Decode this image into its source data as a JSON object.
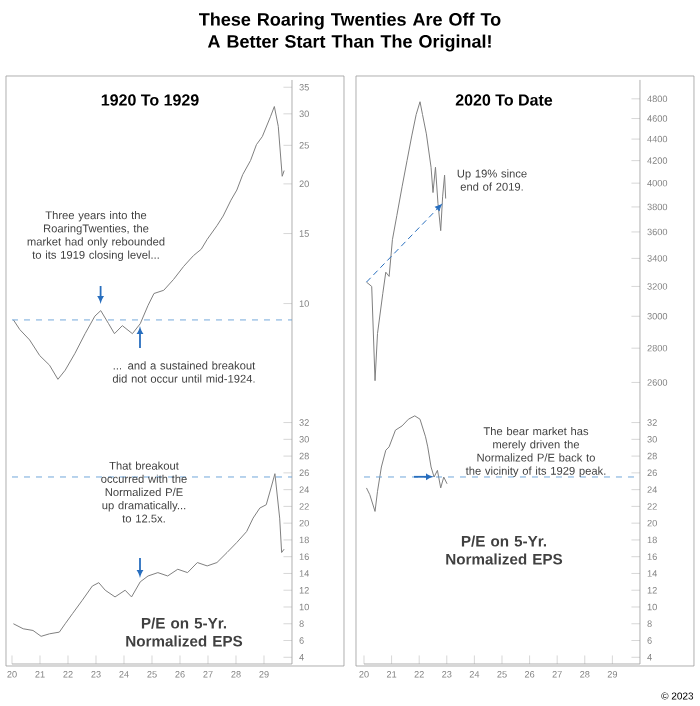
{
  "chart_data": [
    {
      "type": "line",
      "title": "These Roaring Twenties Are Off To A Better Start Than The Original!",
      "subtitle": "1920 To 1929",
      "log": "y",
      "xlim": [
        1920,
        1930
      ],
      "ylim": [
        5.4,
        36.5
      ],
      "yticks": [
        10,
        15,
        20,
        25,
        30,
        35
      ],
      "tick_labels": "y",
      "series": [
        {
          "color": "#808080",
          "x": [
            1920.05,
            1920.28,
            1920.63,
            1920.99,
            1921.34,
            1921.64,
            1921.9,
            1922.25,
            1922.61,
            1922.96,
            1923.17,
            1923.45,
            1923.66,
            1923.94,
            1924.3,
            1924.58,
            1924.86,
            1925.07,
            1925.42,
            1925.77,
            1926.13,
            1926.48,
            1926.76,
            1926.97,
            1927.32,
            1927.54,
            1927.82,
            1928.03,
            1928.24,
            1928.52,
            1928.73,
            1928.94,
            1929.23,
            1929.37,
            1929.51,
            1929.65,
            1929.72
          ],
          "values": [
            9.1,
            8.6,
            8.1,
            7.4,
            7.0,
            6.45,
            6.8,
            7.5,
            8.4,
            9.3,
            9.6,
            8.9,
            8.4,
            8.8,
            8.4,
            8.9,
            9.9,
            10.6,
            10.8,
            11.5,
            12.4,
            13.2,
            13.7,
            14.5,
            15.7,
            16.6,
            18.2,
            19.3,
            21.1,
            22.9,
            25.1,
            26.3,
            29.5,
            31.3,
            27.9,
            20.9,
            21.6
          ]
        }
      ],
      "ref_lines": [
        {
          "axis": "y",
          "value": 9.1,
          "color": "#5b9bd5",
          "line_style": "dashed"
        }
      ],
      "annotations": [
        "Three years into the RoaringTwenties, the market had only rebounded to its 1919 closing level...",
        "... and a sustained breakout did not occur until mid-1924."
      ]
    },
    {
      "type": "line",
      "subtitle": "2020 To Date",
      "log": "y",
      "xlim": [
        2020,
        2030
      ],
      "ylim": [
        2450,
        5000
      ],
      "yticks": [
        2600,
        2800,
        3000,
        3200,
        3400,
        3600,
        3800,
        4000,
        4200,
        4400,
        4600,
        4800
      ],
      "tick_labels": "y",
      "series": [
        {
          "color": "#808080",
          "x": [
            2020.09,
            2020.28,
            2020.4,
            2020.49,
            2020.68,
            2020.79,
            2020.91,
            2021.03,
            2021.19,
            2021.38,
            2021.56,
            2021.73,
            2021.89,
            2022.03,
            2022.12,
            2022.26,
            2022.43,
            2022.5,
            2022.59,
            2022.68,
            2022.78,
            2022.85,
            2022.92,
            2022.96
          ],
          "values": [
            3230,
            3200,
            2610,
            2890,
            3150,
            3300,
            3270,
            3540,
            3730,
            3970,
            4200,
            4430,
            4640,
            4770,
            4640,
            4450,
            4140,
            3920,
            4140,
            3830,
            3610,
            3890,
            4070,
            3870
          ]
        }
      ],
      "annotations": [
        {
          "text": "Up 19% since end of 2019.",
          "x": 2022.85,
          "y": 3830
        }
      ]
    },
    {
      "type": "line",
      "xlim": [
        1920,
        1930
      ],
      "ylim": [
        3.2,
        33.5
      ],
      "yticks": [
        4,
        6,
        8,
        10,
        12,
        14,
        16,
        18,
        20,
        22,
        24,
        26,
        28,
        30,
        32
      ],
      "xticks": [
        {
          "value": 1920,
          "label": "20"
        },
        {
          "value": 1921,
          "label": "21"
        },
        {
          "value": 1922,
          "label": "22"
        },
        {
          "value": 1923,
          "label": "23"
        },
        {
          "value": 1924,
          "label": "24"
        },
        {
          "value": 1925,
          "label": "25"
        },
        {
          "value": 1926,
          "label": "26"
        },
        {
          "value": 1927,
          "label": "27"
        },
        {
          "value": 1928,
          "label": "28"
        },
        {
          "value": 1929,
          "label": "29"
        }
      ],
      "series": [
        {
          "color": "#808080",
          "x": [
            1920.05,
            1920.4,
            1920.75,
            1921.04,
            1921.34,
            1921.69,
            1921.9,
            1922.16,
            1922.51,
            1922.87,
            1923.1,
            1923.33,
            1923.68,
            1924.04,
            1924.27,
            1924.58,
            1924.86,
            1925.21,
            1925.56,
            1925.92,
            1926.27,
            1926.62,
            1926.97,
            1927.32,
            1927.68,
            1928.03,
            1928.38,
            1928.61,
            1928.85,
            1929.08,
            1929.25,
            1929.39,
            1929.56,
            1929.63,
            1929.72
          ],
          "values": [
            8.0,
            7.4,
            7.2,
            6.5,
            6.8,
            7.0,
            8.0,
            9.2,
            10.8,
            12.5,
            12.9,
            12.0,
            11.2,
            12.0,
            11.2,
            13.0,
            13.7,
            14.1,
            13.7,
            14.5,
            14.1,
            15.3,
            14.9,
            15.3,
            16.5,
            17.7,
            19.0,
            20.6,
            21.8,
            22.2,
            24.2,
            25.9,
            20.6,
            16.5,
            16.9
          ]
        }
      ],
      "ref_lines": [
        {
          "axis": "y",
          "value": 25.5,
          "color": "#5b9bd5",
          "line_style": "dashed"
        }
      ],
      "annotations": [
        "That breakout occurred with the Normalized P/E up dramatically... to 12.5x.",
        "P/E on 5-Yr. Normalized EPS"
      ]
    },
    {
      "type": "line",
      "xlim": [
        2020,
        2030
      ],
      "ylim": [
        3.2,
        33.5
      ],
      "yticks": [
        4,
        6,
        8,
        10,
        12,
        14,
        16,
        18,
        20,
        22,
        24,
        26,
        28,
        30,
        32
      ],
      "xticks": [
        {
          "value": 2020,
          "label": "20"
        },
        {
          "value": 2021,
          "label": "21"
        },
        {
          "value": 2022,
          "label": "22"
        },
        {
          "value": 2023,
          "label": "23"
        },
        {
          "value": 2024,
          "label": "24"
        },
        {
          "value": 2025,
          "label": "25"
        },
        {
          "value": 2026,
          "label": "26"
        },
        {
          "value": 2027,
          "label": "27"
        },
        {
          "value": 2028,
          "label": "28"
        },
        {
          "value": 2029,
          "label": "29"
        }
      ],
      "series": [
        {
          "color": "#808080",
          "x": [
            2020.09,
            2020.21,
            2020.4,
            2020.49,
            2020.63,
            2020.79,
            2020.91,
            2021.14,
            2021.38,
            2021.61,
            2021.84,
            2022.03,
            2022.23,
            2022.31,
            2022.43,
            2022.54,
            2022.66,
            2022.78,
            2022.89,
            2023.01
          ],
          "values": [
            24.2,
            23.4,
            21.4,
            23.8,
            26.7,
            28.7,
            29.1,
            31.1,
            31.6,
            32.4,
            32.8,
            32.4,
            30.3,
            29.1,
            26.7,
            25.5,
            26.3,
            24.2,
            25.5,
            24.7
          ]
        }
      ],
      "ref_lines": [
        {
          "axis": "y",
          "value": 25.5,
          "color": "#5b9bd5",
          "line_style": "dashed"
        }
      ],
      "annotations": [
        "The bear market has merely driven the Normalized P/E back to the vicinity of its 1929 peak.",
        "P/E on 5-Yr. Normalized EPS",
        "© 2023"
      ]
    }
  ]
}
